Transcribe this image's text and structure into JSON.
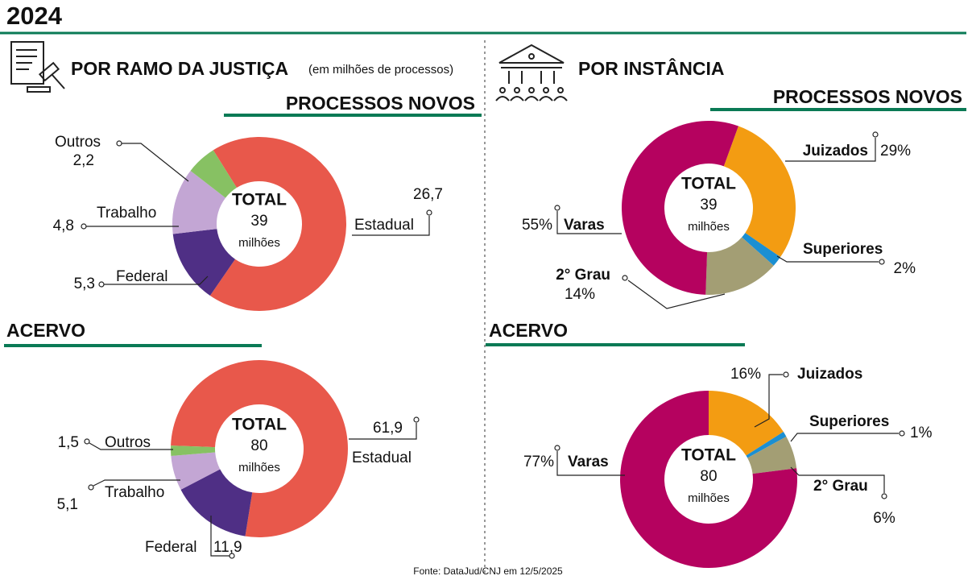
{
  "title": "2024",
  "sections": [
    {
      "heading": "POR RAMO DA JUSTIÇA",
      "note": "(em milhões de processos)"
    },
    {
      "heading": "POR INSTÂNCIA"
    }
  ],
  "source": "Fonte: DataJud/CNJ em 12/5/2025",
  "chart_data": [
    {
      "type": "pie",
      "title": "PROCESSOS NOVOS",
      "center_label": "TOTAL",
      "center_value": 39,
      "center_unit": "milhões",
      "categories": [
        "Estadual",
        "Federal",
        "Trabalho",
        "Outros"
      ],
      "values": [
        26.7,
        5.3,
        4.8,
        2.2
      ],
      "value_labels": [
        "26,7",
        "5,3",
        "4,8",
        "2,2"
      ],
      "colors": [
        "#e8584b",
        "#4f2f85",
        "#c3a6d4",
        "#87c163"
      ]
    },
    {
      "type": "pie",
      "title": "PROCESSOS NOVOS",
      "center_label": "TOTAL",
      "center_value": 39,
      "center_unit": "milhões",
      "categories": [
        "Juizados",
        "Superiores",
        "2° Grau",
        "Varas"
      ],
      "values": [
        29,
        2,
        14,
        55
      ],
      "value_labels": [
        "29%",
        "2%",
        "14%",
        "55%"
      ],
      "colors": [
        "#f39c12",
        "#1b8fd2",
        "#a39e74",
        "#b5025f"
      ]
    },
    {
      "type": "pie",
      "title": "ACERVO",
      "center_label": "TOTAL",
      "center_value": 80,
      "center_unit": "milhões",
      "categories": [
        "Estadual",
        "Federal",
        "Trabalho",
        "Outros"
      ],
      "values": [
        61.9,
        11.9,
        5.1,
        1.5
      ],
      "value_labels": [
        "61,9",
        "11,9",
        "5,1",
        "1,5"
      ],
      "colors": [
        "#e8584b",
        "#4f2f85",
        "#c3a6d4",
        "#87c163"
      ]
    },
    {
      "type": "pie",
      "title": "ACERVO",
      "center_label": "TOTAL",
      "center_value": 80,
      "center_unit": "milhões",
      "categories": [
        "Juizados",
        "Superiores",
        "2° Grau",
        "Varas"
      ],
      "values": [
        16,
        1,
        6,
        77
      ],
      "value_labels": [
        "16%",
        "1%",
        "6%",
        "77%"
      ],
      "colors": [
        "#f39c12",
        "#1b8fd2",
        "#a39e74",
        "#b5025f"
      ]
    }
  ]
}
